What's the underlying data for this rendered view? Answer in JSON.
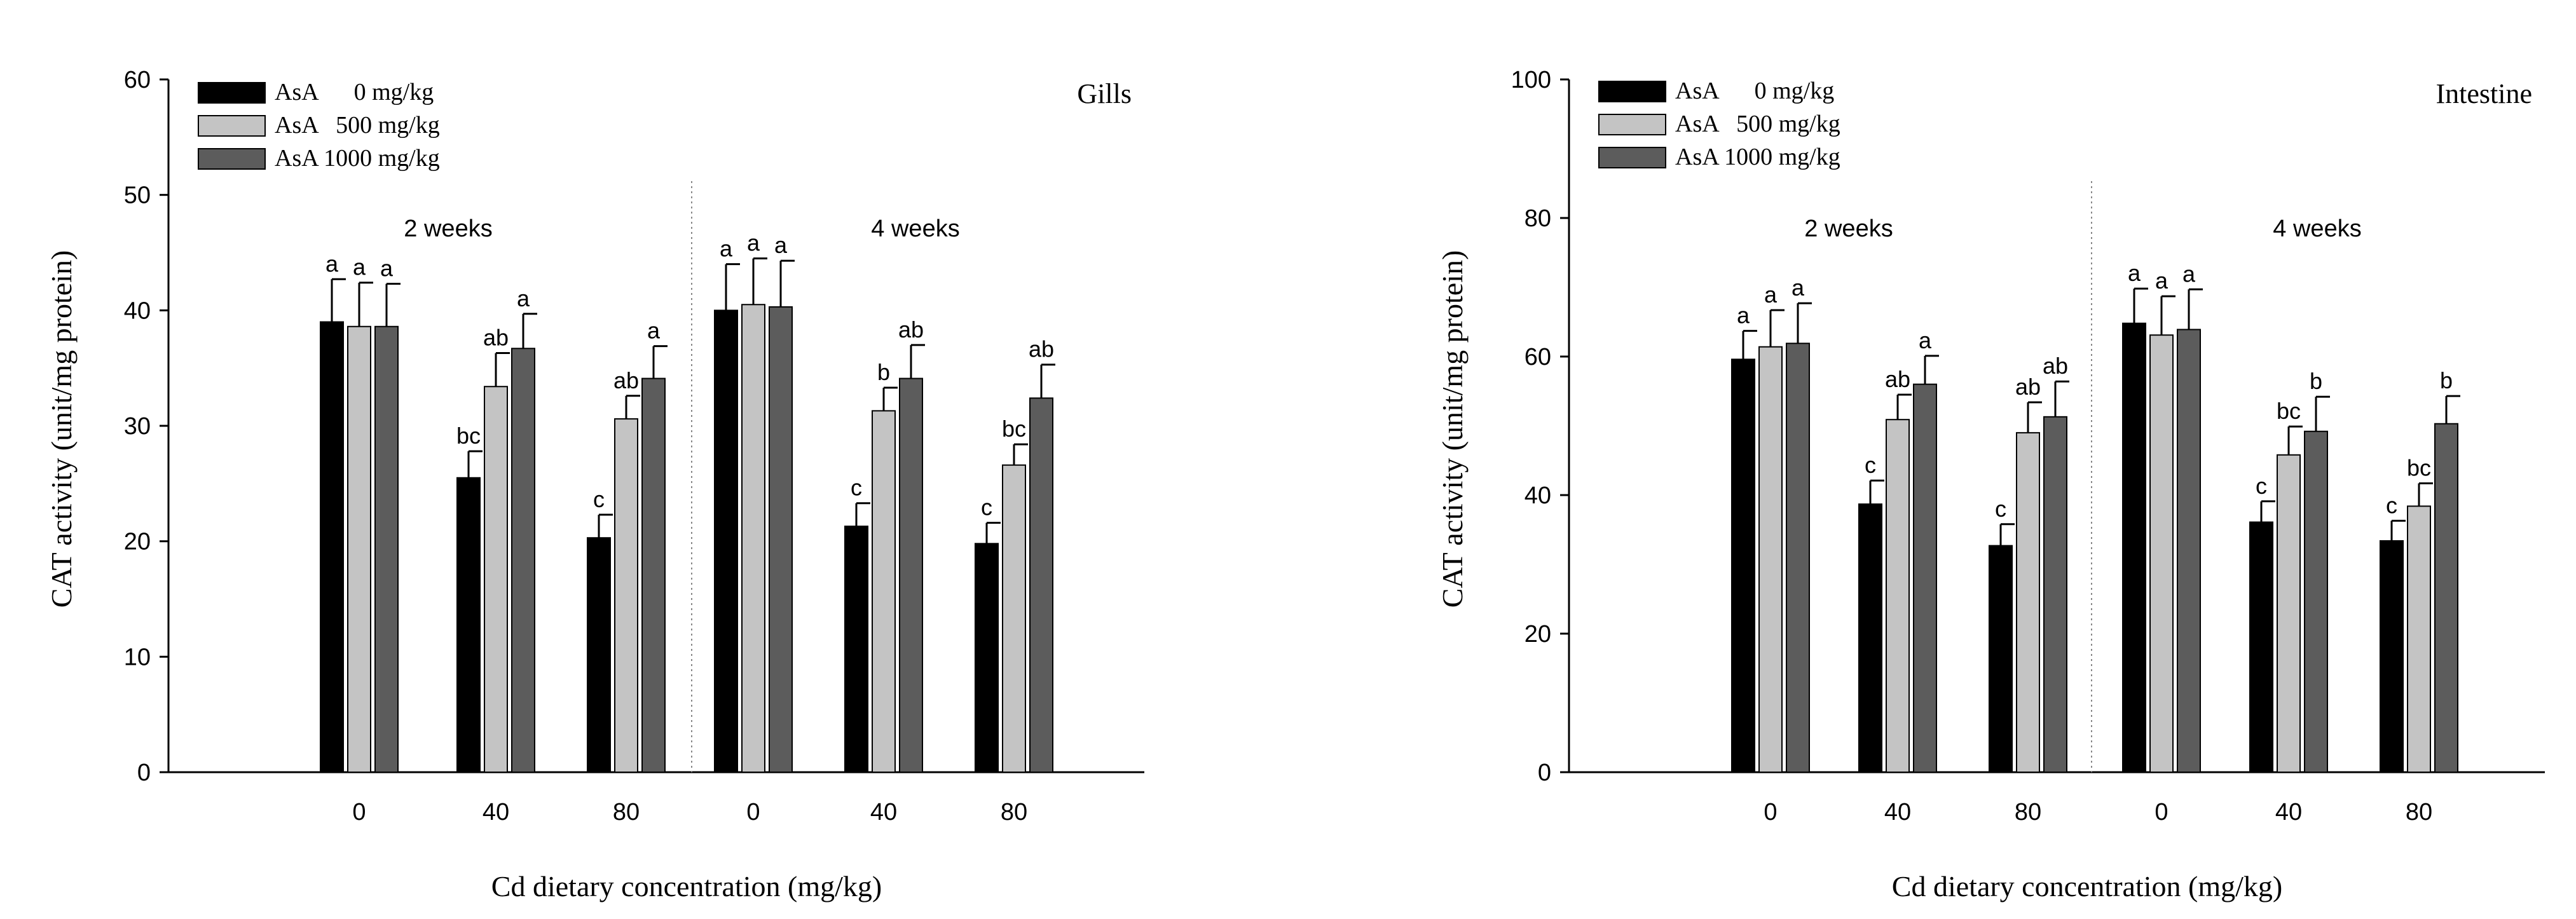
{
  "colors": {
    "series": [
      "#000000",
      "#c4c4c4",
      "#5c5c5c"
    ],
    "axis": "#000000",
    "divider": "#888888"
  },
  "chart_data": [
    {
      "type": "bar",
      "panel": "Gills",
      "title": "Gills",
      "xlabel": "Cd dietary concentration (mg/kg)",
      "ylabel": "CAT activity  (unit/mg protein)",
      "ylim": [
        0,
        60
      ],
      "yticks": [
        "0",
        "10",
        "20",
        "30",
        "40",
        "50",
        "60"
      ],
      "groups": [
        "2 weeks",
        "4 weeks"
      ],
      "categories": [
        "0",
        "40",
        "80",
        "0",
        "40",
        "80"
      ],
      "legend": [
        "AsA      0 mg/kg",
        "AsA   500 mg/kg",
        "AsA 1000 mg/kg"
      ],
      "series": [
        {
          "name": "AsA 0 mg/kg",
          "values": [
            39.0,
            25.5,
            20.3,
            40.0,
            21.3,
            19.8
          ],
          "errors": [
            3.7,
            2.3,
            2.0,
            4.0,
            2.0,
            1.8
          ],
          "letters": [
            "a",
            "bc",
            "c",
            "a",
            "c",
            "c"
          ]
        },
        {
          "name": "AsA 500 mg/kg",
          "values": [
            38.6,
            33.4,
            30.6,
            40.5,
            31.3,
            26.6
          ],
          "errors": [
            3.8,
            2.9,
            2.0,
            4.0,
            2.0,
            1.8
          ],
          "letters": [
            "a",
            "ab",
            "ab",
            "a",
            "b",
            "bc"
          ]
        },
        {
          "name": "AsA 1000 mg/kg",
          "values": [
            38.6,
            36.7,
            34.1,
            40.3,
            34.1,
            32.4
          ],
          "errors": [
            3.7,
            3.0,
            2.8,
            4.0,
            2.9,
            2.9
          ],
          "letters": [
            "a",
            "a",
            "a",
            "a",
            "ab",
            "ab"
          ]
        }
      ]
    },
    {
      "type": "bar",
      "panel": "Intestine",
      "title": "Intestine",
      "xlabel": "Cd dietary concentration (mg/kg)",
      "ylabel": "CAT activity  (unit/mg protein)",
      "ylim": [
        0,
        100
      ],
      "yticks": [
        "0",
        "20",
        "40",
        "60",
        "80",
        "100"
      ],
      "groups": [
        "2 weeks",
        "4 weeks"
      ],
      "categories": [
        "0",
        "40",
        "80",
        "0",
        "40",
        "80"
      ],
      "legend": [
        "AsA      0 mg/kg",
        "AsA   500 mg/kg",
        "AsA 1000 mg/kg"
      ],
      "series": [
        {
          "name": "AsA 0 mg/kg",
          "values": [
            59.6,
            38.7,
            32.7,
            64.8,
            36.1,
            33.4
          ],
          "errors": [
            4.1,
            3.4,
            3.1,
            5.0,
            3.0,
            2.9
          ],
          "letters": [
            "a",
            "c",
            "c",
            "a",
            "c",
            "c"
          ]
        },
        {
          "name": "AsA 500 mg/kg",
          "values": [
            61.4,
            50.9,
            49.0,
            63.1,
            45.8,
            38.4
          ],
          "errors": [
            5.3,
            3.6,
            4.4,
            5.6,
            4.1,
            3.3
          ],
          "letters": [
            "a",
            "ab",
            "ab",
            "a",
            "bc",
            "bc"
          ]
        },
        {
          "name": "AsA 1000 mg/kg",
          "values": [
            61.9,
            56.0,
            51.3,
            63.9,
            49.2,
            50.3
          ],
          "errors": [
            5.8,
            4.1,
            5.1,
            5.8,
            5.0,
            4.0
          ],
          "letters": [
            "a",
            "a",
            "ab",
            "a",
            "b",
            "b"
          ]
        }
      ]
    }
  ]
}
